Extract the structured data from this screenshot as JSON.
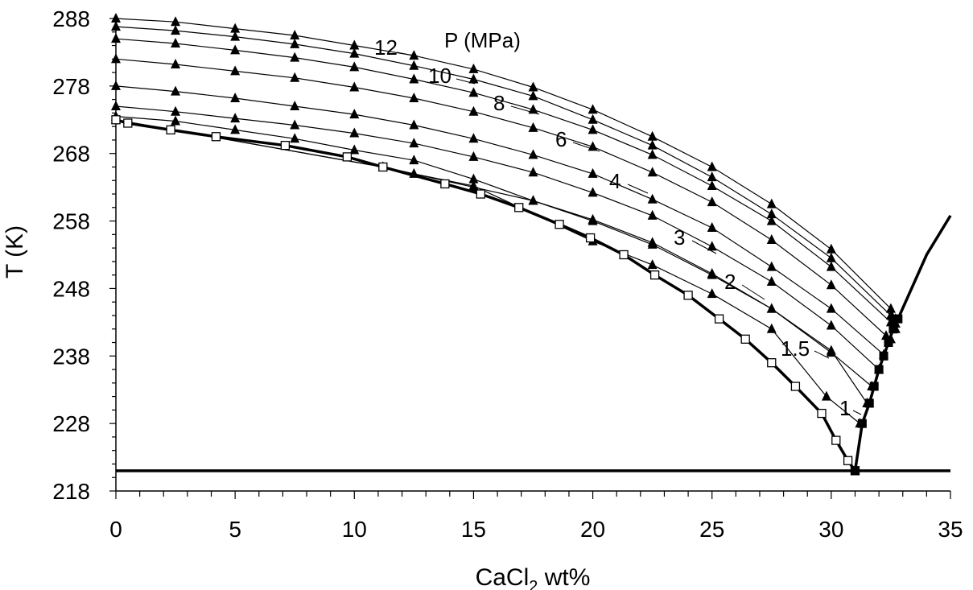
{
  "chart_data": {
    "type": "line",
    "xlabel_main": "CaCl",
    "xlabel_sub": "2",
    "xlabel_tail": " wt%",
    "ylabel": "T (K)",
    "legend_title": "P (MPa)",
    "xlim": [
      0,
      35
    ],
    "ylim": [
      218,
      288
    ],
    "xticks": [
      0,
      5,
      10,
      15,
      20,
      25,
      30,
      35
    ],
    "yticks": [
      218,
      228,
      238,
      248,
      258,
      268,
      278,
      288
    ],
    "grid": false,
    "horizontal_line_y": 221,
    "series": [
      {
        "name": "12",
        "x": [
          0,
          2.5,
          5,
          7.5,
          10,
          12.5,
          15,
          17.5,
          20,
          22.5,
          25,
          27.5,
          30,
          32.5,
          32.7
        ],
        "y": [
          288.0,
          287.5,
          286.5,
          285.5,
          284.0,
          282.5,
          280.5,
          277.8,
          274.5,
          270.5,
          266.0,
          260.5,
          253.8,
          245.0,
          243.5
        ]
      },
      {
        "name": "10",
        "x": [
          0,
          2.5,
          5,
          7.5,
          10,
          12.5,
          15,
          17.5,
          20,
          22.5,
          25,
          27.5,
          30,
          32.5,
          32.7
        ],
        "y": [
          286.8,
          286.2,
          285.3,
          284.2,
          282.8,
          281.0,
          279.0,
          276.5,
          273.0,
          269.2,
          264.5,
          259.0,
          252.5,
          244.0,
          242.8
        ]
      },
      {
        "name": "8",
        "x": [
          0,
          2.5,
          5,
          7.5,
          10,
          12.5,
          15,
          17.5,
          20,
          22.5,
          25,
          27.5,
          30,
          32.5,
          32.7
        ],
        "y": [
          285.0,
          284.3,
          283.3,
          282.2,
          280.8,
          279.0,
          277.0,
          274.5,
          271.5,
          267.8,
          263.2,
          258.0,
          251.2,
          243.0,
          242.0
        ]
      },
      {
        "name": "6",
        "x": [
          0,
          2.5,
          5,
          7.5,
          10,
          12.5,
          15,
          17.5,
          20,
          22.5,
          25,
          27.5,
          30,
          32.3,
          32.5
        ],
        "y": [
          282.0,
          281.2,
          280.2,
          279.2,
          277.8,
          276.2,
          274.2,
          271.8,
          269.0,
          265.2,
          260.8,
          255.2,
          248.5,
          241.0,
          240.5
        ]
      },
      {
        "name": "4",
        "x": [
          0,
          2.5,
          5,
          7.5,
          10,
          12.5,
          15,
          17.5,
          20,
          22.5,
          25,
          27.5,
          30,
          32.2
        ],
        "y": [
          278.0,
          277.2,
          276.2,
          275.0,
          273.8,
          272.2,
          270.2,
          267.8,
          265.0,
          261.2,
          257.0,
          251.2,
          245.0,
          238.2
        ]
      },
      {
        "name": "3",
        "x": [
          0,
          2.5,
          5,
          7.5,
          10,
          12.5,
          15,
          17.5,
          20,
          22.5,
          25,
          27.5,
          30,
          32.0
        ],
        "y": [
          275.0,
          274.2,
          273.2,
          272.2,
          271.0,
          269.5,
          267.5,
          265.2,
          262.2,
          258.8,
          254.2,
          249.0,
          242.5,
          236.0
        ]
      },
      {
        "name": "2",
        "x": [
          0,
          2.5,
          5,
          7.5,
          10,
          12.5,
          15,
          17.5,
          20,
          22.5,
          25,
          27.5,
          30,
          31.7
        ],
        "y": [
          273.5,
          272.8,
          271.5,
          270.2,
          268.5,
          267.0,
          264.2,
          261.0,
          258.0,
          254.5,
          250.0,
          245.0,
          238.5,
          233.5
        ]
      },
      {
        "name": "1.5",
        "x": [
          0,
          11.2,
          15,
          17.5,
          20,
          22.5,
          25,
          27.5,
          30,
          31.5
        ],
        "y": [
          273.0,
          266.0,
          263.0,
          261.0,
          258.2,
          254.8,
          250.2,
          245.0,
          238.8,
          231.0
        ]
      },
      {
        "name": "1",
        "x": [
          0,
          11.2,
          12.5,
          15,
          20,
          22.5,
          25,
          27.5,
          29.8,
          31.2
        ],
        "y": [
          273.0,
          266.0,
          265.0,
          263.2,
          255.0,
          251.5,
          247.2,
          242.0,
          232.0,
          228.0
        ]
      }
    ],
    "ice_curve": {
      "x": [
        0,
        0.5,
        2.3,
        4.2,
        7.1,
        9.7,
        11.2,
        13.8,
        15.3,
        16.9,
        18.6,
        19.9,
        21.3,
        22.6,
        24.0,
        25.3,
        26.4,
        27.5,
        28.5,
        29.6,
        30.2,
        30.7,
        31.0
      ],
      "y": [
        273.0,
        272.5,
        271.5,
        270.5,
        269.2,
        267.5,
        266.0,
        263.5,
        262.0,
        260.0,
        257.5,
        255.5,
        253.0,
        250.0,
        247.0,
        243.5,
        240.5,
        237.0,
        233.5,
        229.5,
        225.5,
        222.5,
        221.0
      ]
    },
    "salt_curve": {
      "x": [
        31.0,
        31.3,
        31.6,
        31.8,
        32.0,
        32.2,
        32.4,
        32.6,
        32.8,
        34.0,
        35.0
      ],
      "y": [
        221.0,
        228.0,
        231.0,
        233.5,
        236.0,
        238.0,
        240.0,
        242.0,
        243.5,
        253.0,
        258.8
      ]
    },
    "series_label_text": [
      "12",
      "10",
      "8",
      "6",
      "4",
      "3",
      "2",
      "1.5",
      "1"
    ]
  }
}
